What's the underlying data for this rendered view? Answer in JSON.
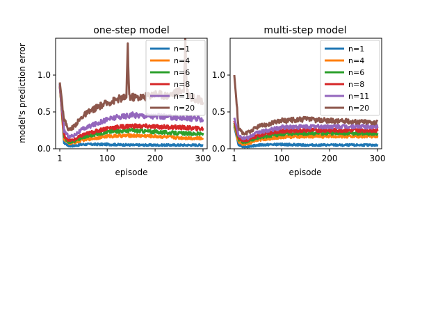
{
  "chart_data": [
    {
      "type": "line",
      "title": "one-step model",
      "xlabel": "episode",
      "ylabel": "model's prediction error",
      "xlim": [
        1,
        300
      ],
      "ylim": [
        0,
        1.5
      ],
      "xticks": [
        1,
        100,
        200,
        300
      ],
      "yticks": [
        0.0,
        0.5,
        1.0
      ],
      "ytick_labels": [
        "0.0",
        "0.5",
        "1.0"
      ],
      "legend": "top-right",
      "series": [
        {
          "name": "n=1",
          "color": "#1f77b4",
          "x": [
            1,
            10,
            20,
            30,
            50,
            100,
            150,
            200,
            250,
            300
          ],
          "y": [
            0.88,
            0.08,
            0.04,
            0.04,
            0.06,
            0.06,
            0.05,
            0.05,
            0.05,
            0.05
          ]
        },
        {
          "name": "n=4",
          "color": "#ff7f0e",
          "x": [
            1,
            10,
            20,
            30,
            50,
            100,
            150,
            200,
            250,
            300
          ],
          "y": [
            0.85,
            0.12,
            0.07,
            0.08,
            0.12,
            0.17,
            0.18,
            0.17,
            0.15,
            0.14
          ]
        },
        {
          "name": "n=6",
          "color": "#2ca02c",
          "x": [
            1,
            10,
            20,
            30,
            50,
            100,
            150,
            200,
            250,
            300
          ],
          "y": [
            0.85,
            0.15,
            0.09,
            0.1,
            0.16,
            0.23,
            0.25,
            0.23,
            0.21,
            0.2
          ]
        },
        {
          "name": "n=8",
          "color": "#d62728",
          "x": [
            1,
            10,
            20,
            30,
            50,
            100,
            150,
            200,
            250,
            300
          ],
          "y": [
            0.86,
            0.18,
            0.11,
            0.12,
            0.19,
            0.28,
            0.31,
            0.3,
            0.29,
            0.27
          ]
        },
        {
          "name": "n=11",
          "color": "#9467bd",
          "x": [
            1,
            10,
            20,
            30,
            50,
            100,
            150,
            200,
            250,
            300
          ],
          "y": [
            0.87,
            0.25,
            0.16,
            0.18,
            0.27,
            0.4,
            0.46,
            0.44,
            0.42,
            0.4
          ]
        },
        {
          "name": "n=20",
          "color": "#8c564b",
          "x": [
            1,
            10,
            20,
            30,
            50,
            75,
            100,
            125,
            140,
            143,
            146,
            150,
            175,
            200,
            225,
            250,
            260,
            263,
            266,
            275,
            300
          ],
          "y": [
            0.9,
            0.4,
            0.25,
            0.3,
            0.45,
            0.55,
            0.62,
            0.68,
            0.7,
            1.38,
            0.72,
            0.7,
            0.7,
            0.75,
            0.72,
            0.78,
            0.8,
            1.45,
            0.8,
            0.7,
            0.65
          ]
        }
      ]
    },
    {
      "type": "line",
      "title": "multi-step model",
      "xlabel": "episode",
      "ylabel": "",
      "xlim": [
        1,
        300
      ],
      "ylim": [
        0,
        1.5
      ],
      "xticks": [
        1,
        100,
        200,
        300
      ],
      "yticks": [
        0.0,
        0.5,
        1.0
      ],
      "ytick_labels": [
        "0.0",
        "0.5",
        "1.0"
      ],
      "legend": "top-right",
      "series": [
        {
          "name": "n=1",
          "color": "#1f77b4",
          "x": [
            1,
            10,
            20,
            30,
            50,
            100,
            150,
            200,
            250,
            300
          ],
          "y": [
            0.3,
            0.05,
            0.03,
            0.03,
            0.05,
            0.06,
            0.05,
            0.05,
            0.05,
            0.05
          ]
        },
        {
          "name": "n=4",
          "color": "#ff7f0e",
          "x": [
            1,
            10,
            20,
            30,
            50,
            100,
            150,
            200,
            250,
            300
          ],
          "y": [
            0.32,
            0.09,
            0.06,
            0.07,
            0.12,
            0.16,
            0.17,
            0.17,
            0.17,
            0.17
          ]
        },
        {
          "name": "n=6",
          "color": "#2ca02c",
          "x": [
            1,
            10,
            20,
            30,
            50,
            100,
            150,
            200,
            250,
            300
          ],
          "y": [
            0.35,
            0.12,
            0.09,
            0.1,
            0.15,
            0.2,
            0.21,
            0.21,
            0.21,
            0.21
          ]
        },
        {
          "name": "n=8",
          "color": "#d62728",
          "x": [
            1,
            10,
            20,
            30,
            50,
            100,
            150,
            200,
            250,
            300
          ],
          "y": [
            0.38,
            0.15,
            0.11,
            0.12,
            0.18,
            0.24,
            0.25,
            0.25,
            0.25,
            0.25
          ]
        },
        {
          "name": "n=11",
          "color": "#9467bd",
          "x": [
            1,
            10,
            20,
            30,
            50,
            100,
            150,
            200,
            250,
            300
          ],
          "y": [
            0.42,
            0.19,
            0.14,
            0.15,
            0.22,
            0.29,
            0.3,
            0.3,
            0.3,
            0.3
          ]
        },
        {
          "name": "n=20",
          "color": "#8c564b",
          "x": [
            1,
            10,
            20,
            30,
            50,
            100,
            150,
            200,
            250,
            300
          ],
          "y": [
            1.0,
            0.28,
            0.2,
            0.22,
            0.3,
            0.38,
            0.4,
            0.38,
            0.37,
            0.36
          ]
        }
      ]
    }
  ]
}
